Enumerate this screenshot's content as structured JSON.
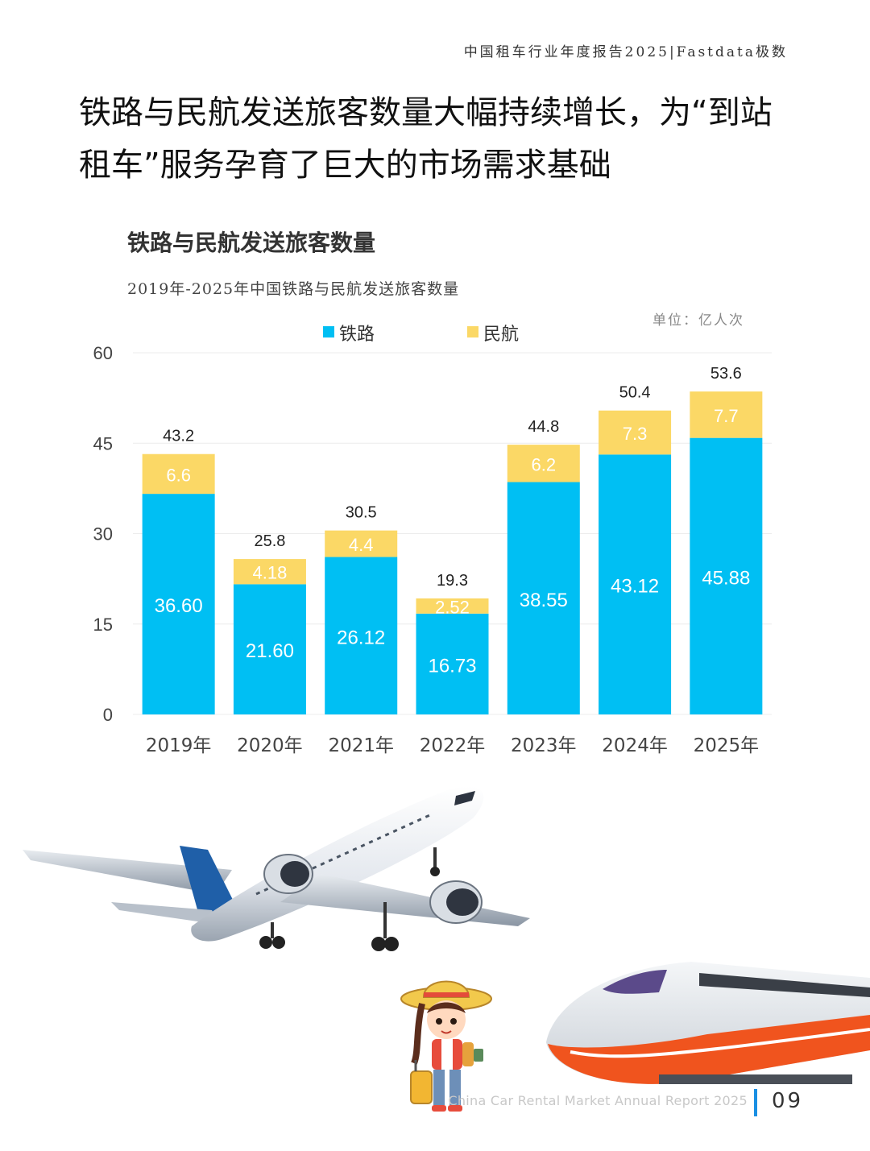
{
  "header": {
    "report_label": "中国租车行业年度报告2025|Fastdata极数"
  },
  "headline": "铁路与民航发送旅客数量大幅持续增长，为“到站租车”服务孕育了巨大的市场需求基础",
  "chart_data": {
    "type": "bar",
    "stacked": true,
    "title": "铁路与民航发送旅客数量",
    "subtitle": "2019年-2025年中国铁路与民航发送旅客数量",
    "unit": "单位：亿人次",
    "categories": [
      "2019年",
      "2020年",
      "2021年",
      "2022年",
      "2023年",
      "2024年",
      "2025年"
    ],
    "series": [
      {
        "name": "铁路",
        "color": "#00bff3",
        "values": [
          36.6,
          21.6,
          26.12,
          16.73,
          38.55,
          43.12,
          45.88
        ],
        "labels": [
          "36.60",
          "21.60",
          "26.12",
          "16.73",
          "38.55",
          "43.12",
          "45.88"
        ]
      },
      {
        "name": "民航",
        "color": "#fbd866",
        "values": [
          6.6,
          4.18,
          4.4,
          2.52,
          6.2,
          7.3,
          7.7
        ],
        "labels": [
          "6.6",
          "4.18",
          "4.4",
          "2.52",
          "6.2",
          "7.3",
          "7.7"
        ]
      }
    ],
    "totals": [
      "43.2",
      "25.8",
      "30.5",
      "19.3",
      "44.8",
      "50.4",
      "53.6"
    ],
    "yticks": [
      0,
      15,
      30,
      45,
      60
    ],
    "ylim": [
      0,
      60
    ],
    "legend_position": "top-center",
    "grid": true
  },
  "footer": {
    "caption": "China Car Rental Market Annual Report 2025",
    "page_number": "09",
    "accent_color": "#1a8fe3"
  },
  "illustrations": {
    "airplane": "airplane-illustration",
    "traveler": "traveler-girl-illustration",
    "train": "high-speed-train-illustration"
  }
}
